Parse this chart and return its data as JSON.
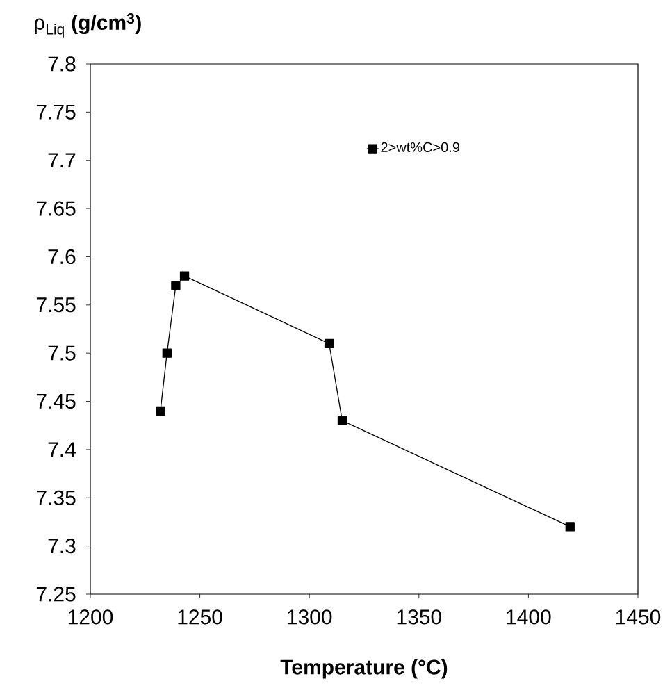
{
  "chart_data": {
    "type": "line",
    "xlabel": "**Temperature (°C)**",
    "ylabel": "ρ$_{Liq}$ **(g/cm$^{3}$)**",
    "x": [
      1232,
      1235,
      1239,
      1243,
      1309,
      1315,
      1419
    ],
    "series": [
      {
        "name": "2>wt%C>0.9",
        "color": "#000000",
        "values": [
          7.44,
          7.5,
          7.57,
          7.58,
          7.51,
          7.43,
          7.32
        ]
      }
    ],
    "xlim": [
      1200,
      1450
    ],
    "ylim": [
      7.25,
      7.8
    ],
    "xticks": [
      1200,
      1250,
      1300,
      1350,
      1400,
      1450
    ],
    "yticks": [
      7.25,
      7.3,
      7.35,
      7.4,
      7.45,
      7.5,
      7.55,
      7.6,
      7.65,
      7.7,
      7.75,
      7.8
    ],
    "legend": "top right",
    "marker": "square",
    "line_style": "solid"
  }
}
